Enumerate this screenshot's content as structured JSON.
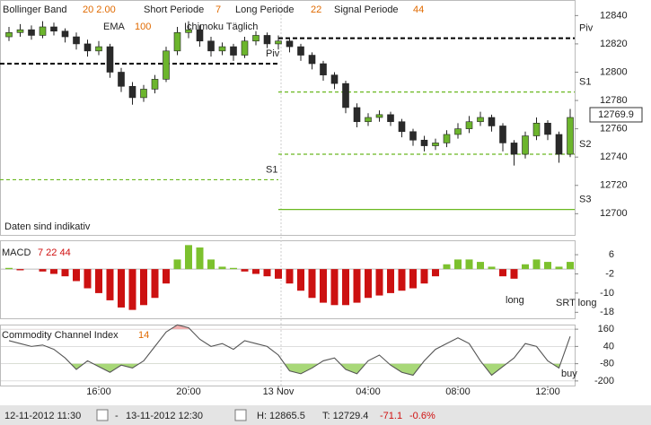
{
  "chart_data": [
    {
      "type": "candlestick",
      "legend": [
        {
          "name": "Bollinger Band",
          "params": "20 2.00"
        },
        {
          "name": "Short Periode",
          "params": "7"
        },
        {
          "name": "Long Periode",
          "params": "22"
        },
        {
          "name": "Signal Periode",
          "params": "44"
        },
        {
          "name": "EMA",
          "params": "100"
        },
        {
          "name": "Ichimoku Täglich",
          "params": ""
        }
      ],
      "categories": [
        null,
        null,
        null,
        null,
        null,
        null,
        null,
        null,
        "16:00",
        null,
        null,
        null,
        null,
        null,
        null,
        null,
        "20:00",
        null,
        null,
        null,
        null,
        null,
        null,
        null,
        "13 Nov",
        null,
        null,
        null,
        null,
        null,
        null,
        null,
        "04:00",
        null,
        null,
        null,
        null,
        null,
        null,
        null,
        "08:00",
        null,
        null,
        null,
        null,
        null,
        null,
        null,
        "12:00",
        null,
        null
      ],
      "open": [
        12825,
        12828,
        12830,
        12826,
        12832,
        12829,
        12825,
        12820,
        12815,
        12818,
        12800,
        12790,
        12782,
        12788,
        12795,
        12815,
        12828,
        12830,
        12822,
        12815,
        12818,
        12812,
        12822,
        12826,
        12820,
        12822,
        12818,
        12812,
        12806,
        12798,
        12792,
        12775,
        12765,
        12768,
        12770,
        12765,
        12758,
        12752,
        12748,
        12750,
        12756,
        12760,
        12765,
        12768,
        12762,
        12750,
        12742,
        12755,
        12764,
        12756,
        12742
      ],
      "high": [
        12832,
        12834,
        12833,
        12836,
        12835,
        12831,
        12828,
        12823,
        12822,
        12820,
        12803,
        12793,
        12791,
        12798,
        12818,
        12832,
        12836,
        12833,
        12825,
        12821,
        12820,
        12825,
        12829,
        12828,
        12826,
        12824,
        12820,
        12814,
        12808,
        12800,
        12794,
        12778,
        12771,
        12773,
        12772,
        12767,
        12760,
        12755,
        12753,
        12759,
        12764,
        12769,
        12772,
        12770,
        12764,
        12752,
        12758,
        12768,
        12766,
        12758,
        12774
      ],
      "low": [
        12822,
        12825,
        12823,
        12824,
        12826,
        12821,
        12816,
        12811,
        12812,
        12796,
        12786,
        12777,
        12779,
        12785,
        12793,
        12812,
        12824,
        12818,
        12811,
        12812,
        12808,
        12810,
        12819,
        12817,
        12816,
        12814,
        12808,
        12802,
        12794,
        12788,
        12771,
        12761,
        12762,
        12765,
        12762,
        12754,
        12748,
        12744,
        12745,
        12747,
        12753,
        12757,
        12762,
        12758,
        12744,
        12734,
        12739,
        12752,
        12752,
        12736,
        12740
      ],
      "close": [
        12828,
        12830,
        12826,
        12832,
        12829,
        12825,
        12820,
        12815,
        12818,
        12800,
        12790,
        12782,
        12788,
        12795,
        12815,
        12828,
        12830,
        12822,
        12815,
        12818,
        12812,
        12822,
        12826,
        12820,
        12822,
        12818,
        12812,
        12806,
        12798,
        12792,
        12775,
        12765,
        12768,
        12770,
        12765,
        12758,
        12752,
        12748,
        12750,
        12756,
        12760,
        12765,
        12768,
        12762,
        12750,
        12742,
        12755,
        12764,
        12756,
        12742,
        12768
      ],
      "up_color": "#6cb52d",
      "down_color": "#2a2a2a",
      "levels": [
        {
          "label": "Piv",
          "value": 12806,
          "start": 0,
          "end": 24
        },
        {
          "label": "S1",
          "value": 12724,
          "start": 0,
          "end": 24
        },
        {
          "label": "Piv",
          "value": 12824,
          "start": 24,
          "end": 50
        },
        {
          "label": "S1",
          "value": 12786,
          "start": 24,
          "end": 50
        },
        {
          "label": "S2",
          "value": 12742,
          "start": 24,
          "end": 50
        },
        {
          "label": "S3",
          "value": 12703,
          "start": 24,
          "end": 50
        }
      ],
      "last": 12769.9,
      "ylim": [
        12685,
        12851
      ],
      "yticks": [
        12700,
        12720,
        12740,
        12760,
        12780,
        12800,
        12820,
        12840
      ],
      "annotations": [
        "Daten sind indikativ"
      ]
    },
    {
      "type": "histogram_panel",
      "title": "MACD",
      "params": "7 22 44",
      "values": [
        0.5,
        -0.5,
        0,
        -1,
        -2,
        -3,
        -5,
        -8,
        -10,
        -13,
        -16,
        -17,
        -15,
        -12,
        -6,
        4,
        10,
        9,
        4,
        1,
        0.5,
        -1,
        -2,
        -3,
        -4,
        -6,
        -9,
        -12,
        -14,
        -15,
        -15,
        -14,
        -12,
        -11,
        -10,
        -9,
        -8,
        -6,
        -3,
        2,
        4,
        4,
        3,
        1,
        -3,
        -4,
        2,
        4,
        3,
        1,
        3
      ],
      "pos_color": "#7cc12e",
      "neg_color": "#cc1111",
      "ylim": [
        -20.5,
        12
      ],
      "yticks": [
        6,
        -2,
        -10,
        -18
      ],
      "annotations": [
        "long",
        "SRT long"
      ]
    },
    {
      "type": "line_panel",
      "title": "Commodity Channel Index",
      "params": "14",
      "values": [
        80,
        60,
        40,
        50,
        20,
        -40,
        -120,
        -60,
        -100,
        -140,
        -90,
        -110,
        -60,
        40,
        140,
        190,
        170,
        90,
        40,
        60,
        20,
        80,
        60,
        40,
        -20,
        -130,
        -150,
        -110,
        -60,
        -40,
        -120,
        -150,
        -60,
        -20,
        -90,
        -140,
        -160,
        -60,
        20,
        60,
        100,
        60,
        -60,
        -160,
        -100,
        -40,
        60,
        40,
        -60,
        -110,
        110
      ],
      "color": "#555555",
      "low_fill": "#a8d878",
      "high_fill": "#f2b0b0",
      "ylim": [
        -232,
        192
      ],
      "yticks": [
        160,
        40,
        -80,
        -200
      ],
      "annotations": [
        "buy"
      ]
    }
  ],
  "footer": {
    "from": "12-11-2012 11:30",
    "to": "13-11-2012 12:30",
    "high": "H: 12865.5",
    "low": "T: 12729.4",
    "change": "-71.1",
    "change_pct": "-0.6%"
  }
}
